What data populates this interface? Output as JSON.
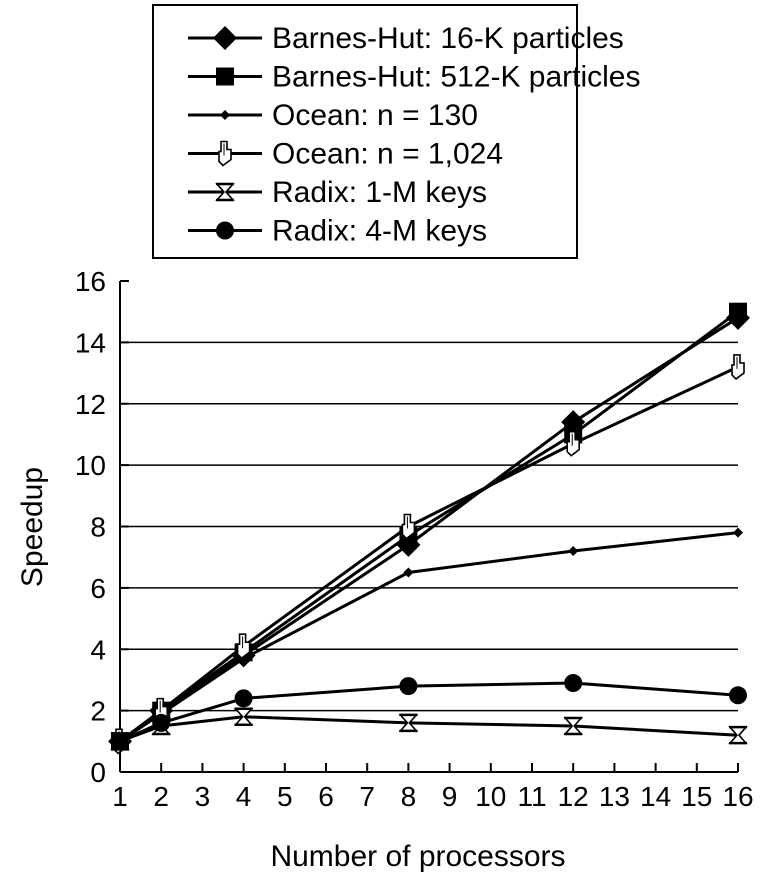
{
  "chart_data": {
    "type": "line",
    "xlabel": "Number of processors",
    "ylabel": "Speedup",
    "xlim": [
      1,
      16
    ],
    "ylim": [
      0,
      16
    ],
    "x_ticks": [
      1,
      2,
      3,
      4,
      5,
      6,
      7,
      8,
      9,
      10,
      11,
      12,
      13,
      14,
      15,
      16
    ],
    "y_ticks": [
      0,
      2,
      4,
      6,
      8,
      10,
      12,
      14,
      16
    ],
    "grid": "horizontal",
    "legend_position": "top-center",
    "series": [
      {
        "name": "Barnes-Hut: 16-K particles",
        "marker": "diamond",
        "points": [
          [
            1,
            1.0
          ],
          [
            2,
            2.0
          ],
          [
            4,
            3.8
          ],
          [
            8,
            7.4
          ],
          [
            12,
            11.4
          ],
          [
            16,
            14.8
          ]
        ]
      },
      {
        "name": "Barnes-Hut: 512-K particles",
        "marker": "square",
        "points": [
          [
            1,
            1.0
          ],
          [
            2,
            2.0
          ],
          [
            4,
            3.9
          ],
          [
            8,
            7.7
          ],
          [
            12,
            11.0
          ],
          [
            16,
            15.0
          ]
        ]
      },
      {
        "name": "Ocean: n = 130",
        "marker": "small-diamond",
        "points": [
          [
            1,
            1.0
          ],
          [
            2,
            1.9
          ],
          [
            4,
            3.7
          ],
          [
            8,
            6.5
          ],
          [
            12,
            7.2
          ],
          [
            16,
            7.8
          ]
        ]
      },
      {
        "name": "Ocean: n = 1,024",
        "marker": "hand",
        "points": [
          [
            1,
            1.0
          ],
          [
            2,
            2.0
          ],
          [
            4,
            4.1
          ],
          [
            8,
            8.0
          ],
          [
            12,
            10.7
          ],
          [
            16,
            13.2
          ]
        ]
      },
      {
        "name": "Radix: 1-M keys",
        "marker": "hourglass",
        "points": [
          [
            1,
            1.0
          ],
          [
            2,
            1.5
          ],
          [
            4,
            1.8
          ],
          [
            8,
            1.6
          ],
          [
            12,
            1.5
          ],
          [
            16,
            1.2
          ]
        ]
      },
      {
        "name": "Radix: 4-M keys",
        "marker": "circle",
        "points": [
          [
            1,
            1.0
          ],
          [
            2,
            1.6
          ],
          [
            4,
            2.4
          ],
          [
            8,
            2.8
          ],
          [
            12,
            2.9
          ],
          [
            16,
            2.5
          ]
        ]
      }
    ]
  }
}
